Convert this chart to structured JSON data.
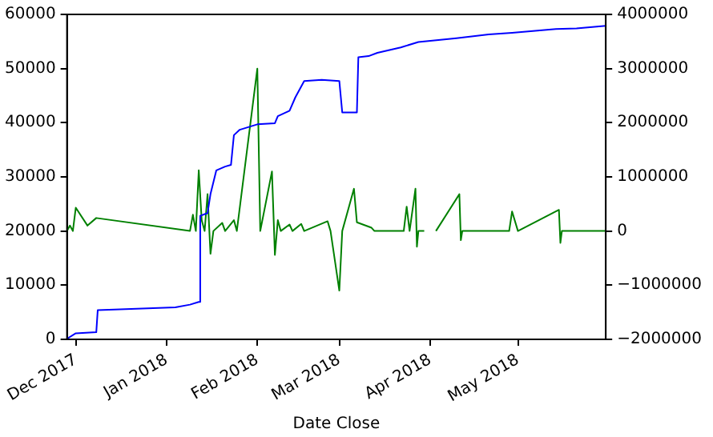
{
  "chart_data": {
    "type": "line",
    "xlabel": "Date Close",
    "grid": false,
    "legend": false,
    "marker": "none",
    "line_style": "solid",
    "xlim": [
      "2017-11-28",
      "2018-05-31"
    ],
    "xticks": [
      {
        "value": "2017-12-01",
        "label": "Dec 2017"
      },
      {
        "value": "2018-01-01",
        "label": "Jan 2018"
      },
      {
        "value": "2018-02-01",
        "label": "Feb 2018"
      },
      {
        "value": "2018-03-01",
        "label": "Mar 2018"
      },
      {
        "value": "2018-04-01",
        "label": "Apr 2018"
      },
      {
        "value": "2018-05-01",
        "label": "May 2018"
      }
    ],
    "ylim": [
      0,
      60000
    ],
    "yticks": [
      0,
      10000,
      20000,
      30000,
      40000,
      50000,
      60000
    ],
    "y2lim": [
      -2000000,
      4000000
    ],
    "y2ticks": [
      {
        "value": -2000000,
        "label": "−2000000"
      },
      {
        "value": -1000000,
        "label": "−1000000"
      },
      0,
      1000000,
      2000000,
      3000000,
      4000000
    ],
    "series": [
      {
        "color": "#0000ff",
        "x": [
          "2017-11-28",
          "2017-12-01",
          "2017-12-08",
          "2017-12-08T12:00",
          "2018-01-04",
          "2018-01-09",
          "2018-01-12",
          "2018-01-12T12:00",
          "2018-01-15",
          "2018-01-16",
          "2018-01-18",
          "2018-01-21",
          "2018-01-23",
          "2018-01-24",
          "2018-01-26",
          "2018-02-01",
          "2018-02-07",
          "2018-02-08",
          "2018-02-12",
          "2018-02-14",
          "2018-02-17",
          "2018-02-23",
          "2018-03-01",
          "2018-03-02",
          "2018-03-07",
          "2018-03-07T12:00",
          "2018-03-11",
          "2018-03-14",
          "2018-03-22",
          "2018-03-28",
          "2018-04-10",
          "2018-04-21",
          "2018-04-29",
          "2018-05-14",
          "2018-05-21",
          "2018-05-31"
        ],
        "values": [
          100,
          1100,
          1300,
          5400,
          5900,
          6400,
          6900,
          22800,
          23300,
          26800,
          31200,
          31900,
          32200,
          37700,
          38700,
          39700,
          39900,
          41200,
          42200,
          44700,
          47700,
          47900,
          47700,
          41900,
          41900,
          52100,
          52300,
          52900,
          53900,
          54900,
          55600,
          56300,
          56600,
          57300,
          57400,
          57900
        ]
      },
      {
        "color": "#008000",
        "axis": "y2",
        "x": [
          "2017-11-28",
          "2017-11-29",
          "2017-11-30",
          "2017-12-01",
          "2017-12-05",
          "2017-12-08",
          "2018-01-09",
          "2018-01-10",
          "2018-01-11",
          "2018-01-12",
          "2018-01-13",
          "2018-01-14",
          "2018-01-15",
          "2018-01-16",
          "2018-01-17",
          "2018-01-20",
          "2018-01-21",
          "2018-01-24",
          "2018-01-25",
          "2018-02-01",
          "2018-02-02",
          "2018-02-06",
          "2018-02-07",
          "2018-02-08",
          "2018-02-09",
          "2018-02-12",
          "2018-02-13",
          "2018-02-16",
          "2018-02-17",
          "2018-02-25",
          "2018-02-26",
          "2018-03-01",
          "2018-03-02",
          "2018-03-06",
          "2018-03-07",
          "2018-03-12",
          "2018-03-13",
          "2018-03-23",
          "2018-03-24",
          "2018-03-25",
          "2018-03-27",
          "2018-03-27T12:00",
          "2018-03-28",
          "2018-03-30",
          "2018-04-01",
          "2018-04-03",
          "2018-04-11",
          "2018-04-11T12:00",
          "2018-04-12",
          "2018-04-28",
          "2018-04-29",
          "2018-05-01",
          "2018-05-15",
          "2018-05-15T12:00",
          "2018-05-16",
          "2018-05-31"
        ],
        "values": [
          0,
          100000,
          0,
          430000,
          100000,
          240000,
          0,
          300000,
          0,
          1120000,
          200000,
          0,
          680000,
          -420000,
          0,
          150000,
          0,
          200000,
          0,
          3000000,
          0,
          1100000,
          -440000,
          200000,
          0,
          120000,
          0,
          130000,
          0,
          180000,
          0,
          -1100000,
          0,
          780000,
          160000,
          60000,
          0,
          0,
          450000,
          0,
          780000,
          -290000,
          0,
          0,
          null,
          0,
          680000,
          -170000,
          0,
          0,
          360000,
          0,
          390000,
          -220000,
          0,
          0
        ]
      }
    ]
  }
}
